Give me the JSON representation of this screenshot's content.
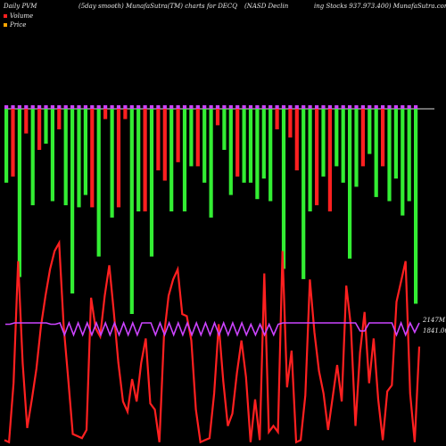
{
  "title": {
    "left": "Daily PVM",
    "middle": "(5day smooth) MunafaSutra(TM) charts for DECQ",
    "right_a": "(NASD Declin",
    "right_b": "ing Stocks 937.973.400) MunafaSutra.com"
  },
  "legend": [
    {
      "label": "Volume",
      "color": "#ff2020"
    },
    {
      "label": "Price",
      "color": "#ffa500"
    }
  ],
  "right_labels": {
    "top": "2147M",
    "bottom": "1841.00"
  },
  "colors": {
    "up": "#33ee33",
    "down": "#ff2020",
    "cap": "#cc44ff",
    "price_line": "#ff2020",
    "pvm_line": "#cc44ff",
    "baseline": "#dddddd"
  },
  "chart_data": {
    "type": "bar",
    "description_series": [
      "volume bars (green = up day, red = down day)",
      "price line",
      "PVM line"
    ],
    "volume_max": 1.0,
    "bars": [
      {
        "v": 0.36,
        "up": true
      },
      {
        "v": 0.33,
        "up": false
      },
      {
        "v": 0.82,
        "up": true
      },
      {
        "v": 0.12,
        "up": false
      },
      {
        "v": 0.47,
        "up": true
      },
      {
        "v": 0.2,
        "up": false
      },
      {
        "v": 0.17,
        "up": true
      },
      {
        "v": 0.45,
        "up": true
      },
      {
        "v": 0.1,
        "up": false
      },
      {
        "v": 0.47,
        "up": true
      },
      {
        "v": 0.9,
        "up": true
      },
      {
        "v": 0.48,
        "up": true
      },
      {
        "v": 0.42,
        "up": true
      },
      {
        "v": 0.48,
        "up": false
      },
      {
        "v": 0.72,
        "up": true
      },
      {
        "v": 0.05,
        "up": false
      },
      {
        "v": 0.53,
        "up": true
      },
      {
        "v": 0.48,
        "up": false
      },
      {
        "v": 0.05,
        "up": false
      },
      {
        "v": 1.0,
        "up": true
      },
      {
        "v": 0.5,
        "up": true
      },
      {
        "v": 0.5,
        "up": false
      },
      {
        "v": 0.72,
        "up": true
      },
      {
        "v": 0.3,
        "up": false
      },
      {
        "v": 0.35,
        "up": false
      },
      {
        "v": 0.5,
        "up": true
      },
      {
        "v": 0.26,
        "up": false
      },
      {
        "v": 0.5,
        "up": true
      },
      {
        "v": 0.28,
        "up": true
      },
      {
        "v": 0.28,
        "up": false
      },
      {
        "v": 0.36,
        "up": true
      },
      {
        "v": 0.53,
        "up": true
      },
      {
        "v": 0.08,
        "up": false
      },
      {
        "v": 0.2,
        "up": true
      },
      {
        "v": 0.42,
        "up": true
      },
      {
        "v": 0.33,
        "up": false
      },
      {
        "v": 0.36,
        "up": true
      },
      {
        "v": 0.36,
        "up": true
      },
      {
        "v": 0.44,
        "up": true
      },
      {
        "v": 0.34,
        "up": true
      },
      {
        "v": 0.45,
        "up": true
      },
      {
        "v": 0.1,
        "up": false
      },
      {
        "v": 0.78,
        "up": true
      },
      {
        "v": 0.14,
        "up": false
      },
      {
        "v": 0.3,
        "up": false
      },
      {
        "v": 0.83,
        "up": true
      },
      {
        "v": 0.5,
        "up": true
      },
      {
        "v": 0.47,
        "up": false
      },
      {
        "v": 0.33,
        "up": true
      },
      {
        "v": 0.5,
        "up": false
      },
      {
        "v": 0.28,
        "up": true
      },
      {
        "v": 0.36,
        "up": true
      },
      {
        "v": 0.73,
        "up": true
      },
      {
        "v": 0.38,
        "up": true
      },
      {
        "v": 0.28,
        "up": false
      },
      {
        "v": 0.22,
        "up": true
      },
      {
        "v": 0.43,
        "up": true
      },
      {
        "v": 0.28,
        "up": false
      },
      {
        "v": 0.45,
        "up": true
      },
      {
        "v": 0.34,
        "up": true
      },
      {
        "v": 0.52,
        "up": true
      },
      {
        "v": 0.45,
        "up": true
      },
      {
        "v": 0.95,
        "up": true
      }
    ],
    "price": [
      0.98,
      0.99,
      0.7,
      0.1,
      0.6,
      0.92,
      0.78,
      0.63,
      0.42,
      0.27,
      0.14,
      0.05,
      0.01,
      0.42,
      0.68,
      0.95,
      0.96,
      0.97,
      0.93,
      0.28,
      0.43,
      0.47,
      0.27,
      0.12,
      0.35,
      0.6,
      0.79,
      0.84,
      0.68,
      0.79,
      0.6,
      0.48,
      0.8,
      0.83,
      0.99,
      0.47,
      0.27,
      0.19,
      0.14,
      0.36,
      0.37,
      0.49,
      0.83,
      0.99,
      0.98,
      0.97,
      0.75,
      0.41,
      0.69,
      0.91,
      0.85,
      0.65,
      0.49,
      0.67,
      0.99,
      0.78,
      0.98,
      0.16,
      0.94,
      0.91,
      0.94,
      0.05,
      0.72,
      0.54,
      0.99,
      0.98,
      0.76,
      0.19,
      0.45,
      0.64,
      0.75,
      0.93,
      0.77,
      0.61,
      0.79,
      0.22,
      0.42,
      0.91,
      0.55,
      0.35,
      0.7,
      0.48,
      0.78,
      0.98,
      0.74,
      0.71,
      0.3,
      0.2,
      0.1,
      0.75,
      0.99,
      0.52
    ],
    "pvm": [
      0.1,
      0.1,
      0.0,
      0.0,
      0.0,
      0.0,
      0.0,
      0.0,
      0.0,
      0.0,
      0.1,
      0.1,
      0.0,
      0.9,
      0.0,
      0.9,
      0.0,
      0.9,
      0.0,
      0.9,
      0.0,
      0.9,
      0.0,
      0.9,
      0.0,
      0.9,
      0.0,
      0.9,
      0.0,
      0.9,
      0.0,
      0.0,
      0.0,
      0.9,
      0.0,
      0.9,
      0.0,
      0.9,
      0.0,
      0.9,
      0.0,
      0.9,
      0.0,
      0.9,
      0.0,
      0.9,
      0.0,
      0.9,
      0.0,
      0.9,
      0.0,
      0.9,
      0.0,
      0.9,
      0.1,
      0.9,
      0.1,
      0.9,
      0.1,
      0.9,
      0.1,
      0.0,
      0.0,
      0.0,
      0.0,
      0.0,
      0.0,
      0.0,
      0.0,
      0.0,
      0.0,
      0.0,
      0.0,
      0.0,
      0.0,
      0.0,
      0.0,
      0.0,
      0.6,
      0.6,
      0.0,
      0.0,
      0.0,
      0.0,
      0.0,
      0.0,
      0.9,
      0.0,
      0.9,
      0.0,
      0.7,
      0.0
    ]
  }
}
